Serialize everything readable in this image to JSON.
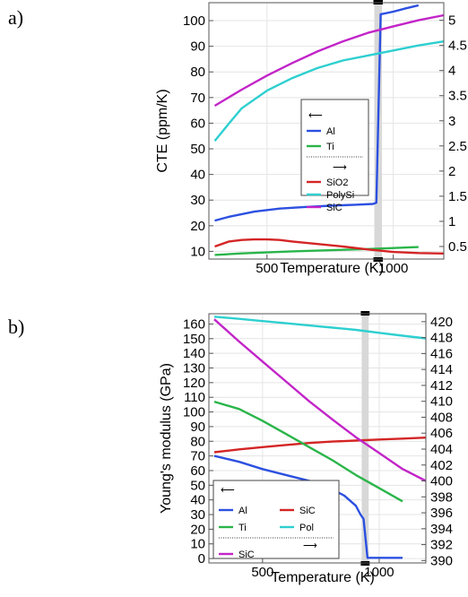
{
  "panels": {
    "a_label": "a)",
    "b_label": "b)"
  },
  "chart_data": [
    {
      "type": "line",
      "panel": "a)",
      "xlabel": "Temperature (K)",
      "ylabel": "CTE (ppm/K)",
      "xlim": [
        270,
        1200
      ],
      "ylim": [
        7,
        107
      ],
      "y2lim": [
        0.25,
        5.35
      ],
      "xticks": [
        500,
        1000
      ],
      "yticks": [
        10,
        20,
        30,
        40,
        50,
        60,
        70,
        80,
        90,
        100
      ],
      "y2ticks": [
        0.5,
        1,
        1.5,
        2,
        2.5,
        3,
        3.5,
        4,
        4.5,
        5
      ],
      "band": {
        "x_from": 925,
        "x_to": 955
      },
      "legend": {
        "left_arrow": "⟵",
        "right_arrow": "⟶",
        "left_axis_entries": [
          {
            "label": "Al",
            "color": "#2c50e0"
          },
          {
            "label": "Ti",
            "color": "#2ab54a"
          }
        ],
        "right_axis_entries": [
          {
            "label": "SiO2",
            "color": "#d42525"
          },
          {
            "label": "PolySi",
            "color": "#2ecfd0"
          },
          {
            "label": "SiC",
            "color": "#c224c8"
          }
        ]
      },
      "series": [
        {
          "name": "Al",
          "axis": "left",
          "color": "#2c50e0",
          "x": [
            293,
            350,
            450,
            550,
            650,
            750,
            850,
            920,
            933,
            950,
            1000,
            1050,
            1100
          ],
          "y": [
            22,
            23.5,
            25.5,
            26.7,
            27.3,
            27.8,
            28.2,
            28.5,
            29,
            102.5,
            103.5,
            104.8,
            106
          ]
        },
        {
          "name": "Ti",
          "axis": "left",
          "color": "#2ab54a",
          "x": [
            293,
            400,
            500,
            600,
            700,
            800,
            900,
            1000,
            1100
          ],
          "y": [
            8.6,
            9.2,
            9.6,
            10,
            10.3,
            10.6,
            10.9,
            11.3,
            11.7
          ]
        },
        {
          "name": "SiO2",
          "axis": "right",
          "color": "#d42525",
          "x": [
            293,
            350,
            400,
            450,
            500,
            550,
            600,
            700,
            800,
            900,
            1000,
            1100,
            1200
          ],
          "y": [
            0.5,
            0.6,
            0.63,
            0.64,
            0.64,
            0.63,
            0.6,
            0.55,
            0.5,
            0.44,
            0.39,
            0.37,
            0.36
          ]
        },
        {
          "name": "PolySi",
          "axis": "right",
          "color": "#2ecfd0",
          "x": [
            293,
            350,
            400,
            500,
            600,
            700,
            800,
            900,
            1000,
            1100,
            1200
          ],
          "y": [
            2.6,
            2.95,
            3.25,
            3.6,
            3.85,
            4.05,
            4.2,
            4.3,
            4.4,
            4.5,
            4.58
          ]
        },
        {
          "name": "SiC",
          "axis": "right",
          "color": "#c224c8",
          "x": [
            293,
            400,
            500,
            600,
            700,
            800,
            900,
            1000,
            1100,
            1200
          ],
          "y": [
            3.3,
            3.62,
            3.9,
            4.15,
            4.38,
            4.58,
            4.75,
            4.88,
            5.0,
            5.1
          ]
        }
      ]
    },
    {
      "type": "line",
      "panel": "b)",
      "xlabel": "Temperature (K)",
      "ylabel": "Young's modulus (GPa)",
      "xlim": [
        270,
        1200
      ],
      "ylim": [
        -3,
        167
      ],
      "y2lim": [
        389.7,
        421
      ],
      "xticks": [
        500,
        1000
      ],
      "yticks": [
        0,
        10,
        20,
        30,
        40,
        50,
        60,
        70,
        80,
        90,
        100,
        110,
        120,
        130,
        140,
        150,
        160
      ],
      "y2ticks": [
        390,
        392,
        394,
        396,
        398,
        400,
        402,
        404,
        406,
        408,
        410,
        412,
        414,
        416,
        418,
        420
      ],
      "band": {
        "x_from": 925,
        "x_to": 955
      },
      "legend": {
        "left_arrow": "⟵",
        "right_arrow": "⟶",
        "left_axis_entries": [
          {
            "label": "Al",
            "color": "#2c50e0"
          },
          {
            "label": "SiC",
            "color": "#d42525"
          },
          {
            "label": "Ti",
            "color": "#2ab54a"
          },
          {
            "label": "Pol",
            "color": "#2ecfd0"
          }
        ],
        "right_axis_entries": [
          {
            "label": "SiC",
            "color": "#c224c8"
          }
        ]
      },
      "series": [
        {
          "name": "Al",
          "axis": "left",
          "color": "#2c50e0",
          "x": [
            293,
            400,
            500,
            600,
            700,
            800,
            850,
            900,
            920,
            933,
            950,
            1000,
            1100
          ],
          "y": [
            70,
            66,
            61,
            57,
            53,
            47,
            43,
            36,
            30,
            27,
            0.5,
            0.5,
            0.5
          ]
        },
        {
          "name": "SiC",
          "axis": "left",
          "color": "#d42525",
          "x": [
            293,
            400,
            500,
            600,
            700,
            800,
            900,
            1000,
            1100,
            1200
          ],
          "y": [
            72.5,
            74.5,
            76,
            77.5,
            78.8,
            79.8,
            80.5,
            81.2,
            81.8,
            82.5
          ]
        },
        {
          "name": "Ti",
          "axis": "left",
          "color": "#2ab54a",
          "x": [
            293,
            400,
            500,
            600,
            700,
            800,
            900,
            1000,
            1100
          ],
          "y": [
            107,
            102,
            94,
            85,
            76,
            67,
            57,
            48,
            39
          ]
        },
        {
          "name": "Pol",
          "axis": "left",
          "color": "#2ecfd0",
          "x": [
            293,
            400,
            500,
            600,
            700,
            800,
            900,
            1000,
            1100,
            1200
          ],
          "y": [
            165,
            163.5,
            162,
            160.5,
            159,
            157.5,
            156,
            154,
            152,
            150.2
          ]
        },
        {
          "name": "SiC",
          "axis": "right",
          "color": "#c224c8",
          "x": [
            293,
            400,
            500,
            600,
            700,
            800,
            900,
            1000,
            1100,
            1200
          ],
          "y": [
            420.3,
            417.5,
            415,
            412.5,
            410,
            407.7,
            405.5,
            403.5,
            401.5,
            400
          ]
        }
      ]
    }
  ]
}
